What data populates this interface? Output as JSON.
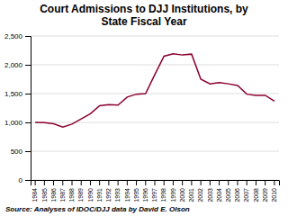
{
  "chart_data": {
    "type": "line",
    "title": "Court Admissions to DJJ Institutions, by\nState Fiscal Year",
    "source": "Source: Analyses of IDOC/DJJ data by David E. Olson",
    "categories": [
      "1984",
      "1985",
      "1986",
      "1987",
      "1988",
      "1989",
      "1990",
      "1991",
      "1992",
      "1993",
      "1994",
      "1995",
      "1996",
      "1997",
      "1998",
      "1999",
      "2000",
      "2001",
      "2002",
      "2003",
      "2004",
      "2005",
      "2006",
      "2007",
      "2008",
      "2009",
      "2010"
    ],
    "values": [
      1000,
      995,
      975,
      920,
      970,
      1060,
      1150,
      1290,
      1310,
      1300,
      1440,
      1490,
      1500,
      1830,
      2150,
      2190,
      2170,
      2185,
      1750,
      1670,
      1690,
      1670,
      1640,
      1490,
      1470,
      1470,
      1370
    ],
    "color": "#8B0030",
    "ylim": [
      0,
      2500
    ],
    "yticks": [
      0,
      500,
      {
        "value": 1000,
        "label": "1,000"
      },
      {
        "value": 1500,
        "label": "1,500"
      },
      {
        "value": 2000,
        "label": "2,000"
      },
      {
        "value": 2500,
        "label": "2,500"
      }
    ],
    "grid": true
  }
}
